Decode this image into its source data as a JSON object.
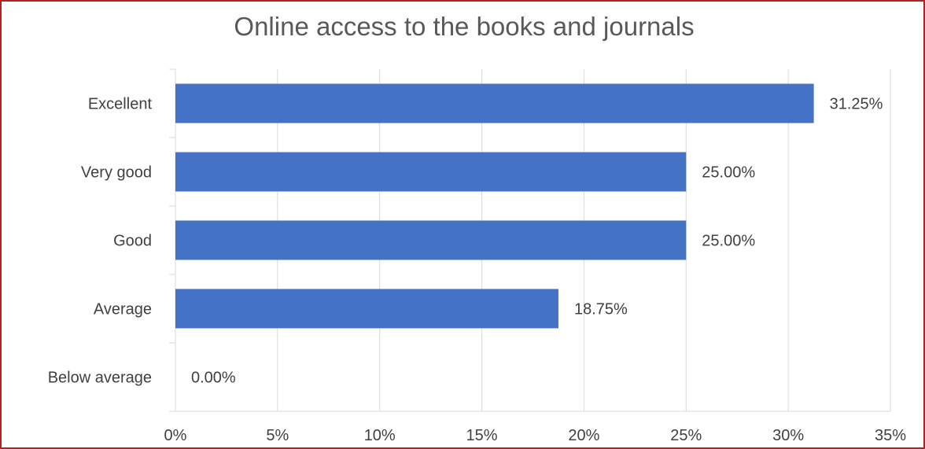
{
  "chart_data": {
    "type": "bar",
    "orientation": "horizontal",
    "title": "Online access to the books and journals",
    "categories": [
      "Excellent",
      "Very good",
      "Good",
      "Average",
      "Below average"
    ],
    "values": [
      31.25,
      25.0,
      25.0,
      18.75,
      0.0
    ],
    "data_labels": [
      "31.25%",
      "25.00%",
      "25.00%",
      "18.75%",
      "0.00%"
    ],
    "xlim": [
      0,
      35
    ],
    "x_ticks": [
      0,
      5,
      10,
      15,
      20,
      25,
      30,
      35
    ],
    "x_tick_labels": [
      "0%",
      "5%",
      "10%",
      "15%",
      "20%",
      "25%",
      "30%",
      "35%"
    ],
    "xlabel": "",
    "ylabel": "",
    "grid": "vertical",
    "legend": "none",
    "bar_color": "#4472c4",
    "gridline_color": "#d9d9d9",
    "border_color": "#b22222"
  }
}
